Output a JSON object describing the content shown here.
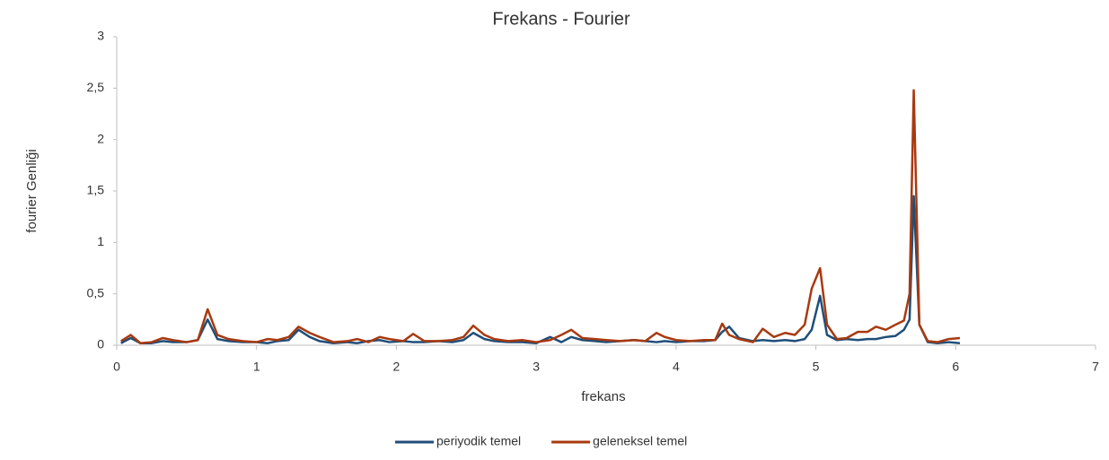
{
  "chart_data": {
    "type": "line",
    "title": "Frekans - Fourier",
    "x_label": "frekans",
    "y_label": "fourier Genliği",
    "x": [
      0.03,
      0.1,
      0.17,
      0.25,
      0.33,
      0.4,
      0.5,
      0.58,
      0.65,
      0.72,
      0.8,
      0.9,
      1.0,
      1.08,
      1.15,
      1.23,
      1.3,
      1.38,
      1.45,
      1.55,
      1.65,
      1.72,
      1.8,
      1.88,
      1.95,
      2.05,
      2.12,
      2.2,
      2.3,
      2.4,
      2.48,
      2.55,
      2.63,
      2.7,
      2.8,
      2.9,
      3.0,
      3.1,
      3.18,
      3.25,
      3.33,
      3.42,
      3.5,
      3.6,
      3.7,
      3.78,
      3.86,
      3.92,
      4.0,
      4.1,
      4.2,
      4.28,
      4.33,
      4.38,
      4.45,
      4.55,
      4.62,
      4.7,
      4.78,
      4.85,
      4.92,
      4.97,
      5.03,
      5.08,
      5.15,
      5.22,
      5.3,
      5.37,
      5.43,
      5.5,
      5.57,
      5.63,
      5.67,
      5.7,
      5.74,
      5.8,
      5.87,
      5.95,
      6.03
    ],
    "series": [
      {
        "name": "periyodik temel",
        "color": "#1f4e79",
        "values": [
          0.02,
          0.07,
          0.02,
          0.02,
          0.04,
          0.03,
          0.03,
          0.05,
          0.25,
          0.06,
          0.04,
          0.03,
          0.03,
          0.02,
          0.04,
          0.05,
          0.15,
          0.08,
          0.04,
          0.02,
          0.03,
          0.02,
          0.04,
          0.05,
          0.03,
          0.04,
          0.03,
          0.03,
          0.04,
          0.03,
          0.05,
          0.12,
          0.06,
          0.04,
          0.03,
          0.03,
          0.02,
          0.08,
          0.03,
          0.08,
          0.05,
          0.04,
          0.03,
          0.04,
          0.05,
          0.04,
          0.03,
          0.04,
          0.03,
          0.04,
          0.04,
          0.05,
          0.13,
          0.18,
          0.07,
          0.04,
          0.05,
          0.04,
          0.05,
          0.04,
          0.06,
          0.15,
          0.48,
          0.1,
          0.05,
          0.06,
          0.05,
          0.06,
          0.06,
          0.08,
          0.09,
          0.15,
          0.25,
          1.45,
          0.2,
          0.03,
          0.02,
          0.03,
          0.02
        ]
      },
      {
        "name": "geleneksel temel",
        "color": "#a8390f",
        "values": [
          0.04,
          0.1,
          0.02,
          0.03,
          0.07,
          0.05,
          0.03,
          0.05,
          0.35,
          0.1,
          0.06,
          0.04,
          0.03,
          0.06,
          0.05,
          0.08,
          0.18,
          0.12,
          0.08,
          0.03,
          0.04,
          0.06,
          0.03,
          0.08,
          0.06,
          0.04,
          0.11,
          0.04,
          0.04,
          0.05,
          0.08,
          0.19,
          0.1,
          0.06,
          0.04,
          0.05,
          0.03,
          0.05,
          0.1,
          0.15,
          0.07,
          0.06,
          0.05,
          0.04,
          0.05,
          0.04,
          0.12,
          0.08,
          0.05,
          0.04,
          0.05,
          0.05,
          0.21,
          0.1,
          0.06,
          0.03,
          0.16,
          0.08,
          0.12,
          0.1,
          0.2,
          0.55,
          0.75,
          0.2,
          0.06,
          0.07,
          0.13,
          0.13,
          0.18,
          0.15,
          0.2,
          0.24,
          0.5,
          2.48,
          0.2,
          0.04,
          0.03,
          0.06,
          0.07
        ]
      }
    ],
    "xlim": [
      0,
      7
    ],
    "xticks": [
      0,
      1,
      2,
      3,
      4,
      5,
      6,
      7
    ],
    "ylim": [
      0,
      3
    ],
    "yticks": [
      0,
      {
        "value": 0.5,
        "label": "0,5"
      },
      1,
      {
        "value": 1.5,
        "label": "1,5"
      },
      2,
      {
        "value": 2.5,
        "label": "2,5"
      },
      3
    ],
    "grid": false,
    "legend": "bottom"
  }
}
